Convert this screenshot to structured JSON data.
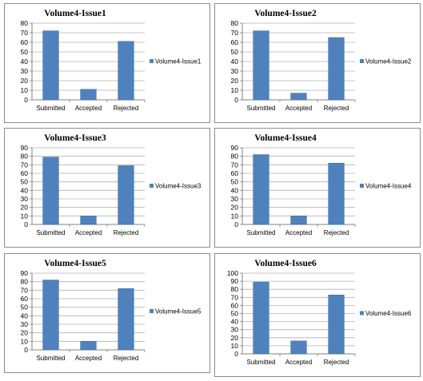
{
  "colors": {
    "bar": "#4f81bd",
    "grid": "#b0b0b0",
    "axis": "#808080"
  },
  "chart_data": [
    {
      "type": "bar",
      "title": "Volume4-Issue1",
      "categories": [
        "Submitted",
        "Accepted",
        "Rejected"
      ],
      "series": [
        {
          "name": "Volume4-Issue1",
          "values": [
            72,
            11,
            61
          ]
        }
      ],
      "ylim": [
        0,
        80
      ],
      "ytick_step": 10,
      "grid": true,
      "legend": "right"
    },
    {
      "type": "bar",
      "title": "Volume4-Issue2",
      "categories": [
        "Submitted",
        "Accepted",
        "Rejected"
      ],
      "series": [
        {
          "name": "Volume4-Issue2",
          "values": [
            72,
            7,
            65
          ]
        }
      ],
      "ylim": [
        0,
        80
      ],
      "ytick_step": 10,
      "grid": true,
      "legend": "right"
    },
    {
      "type": "bar",
      "title": "Volume4-Issue3",
      "categories": [
        "Submitted",
        "Accepted",
        "Rejected"
      ],
      "series": [
        {
          "name": "Volume4-Issue3",
          "values": [
            79,
            10,
            69
          ]
        }
      ],
      "ylim": [
        0,
        90
      ],
      "ytick_step": 10,
      "grid": true,
      "legend": "right"
    },
    {
      "type": "bar",
      "title": "Volume4-Issue4",
      "categories": [
        "Submitted",
        "Accepted",
        "Rejected"
      ],
      "series": [
        {
          "name": "Volume4-Issue4",
          "values": [
            82,
            10,
            72
          ]
        }
      ],
      "ylim": [
        0,
        90
      ],
      "ytick_step": 10,
      "grid": true,
      "legend": "right"
    },
    {
      "type": "bar",
      "title": "Volume4-Issue5",
      "categories": [
        "Submitted",
        "Accepted",
        "Rejected"
      ],
      "series": [
        {
          "name": "Volume4-Issue5",
          "values": [
            82,
            10,
            72
          ]
        }
      ],
      "ylim": [
        0,
        90
      ],
      "ytick_step": 10,
      "grid": true,
      "legend": "right"
    },
    {
      "type": "bar",
      "title": "Volume4-Issue6",
      "categories": [
        "Submitted",
        "Accepted",
        "Rejected"
      ],
      "series": [
        {
          "name": "Volume4-Issue6",
          "values": [
            89,
            16,
            73
          ]
        }
      ],
      "ylim": [
        0,
        100
      ],
      "ytick_step": 10,
      "grid": true,
      "legend": "right"
    }
  ]
}
